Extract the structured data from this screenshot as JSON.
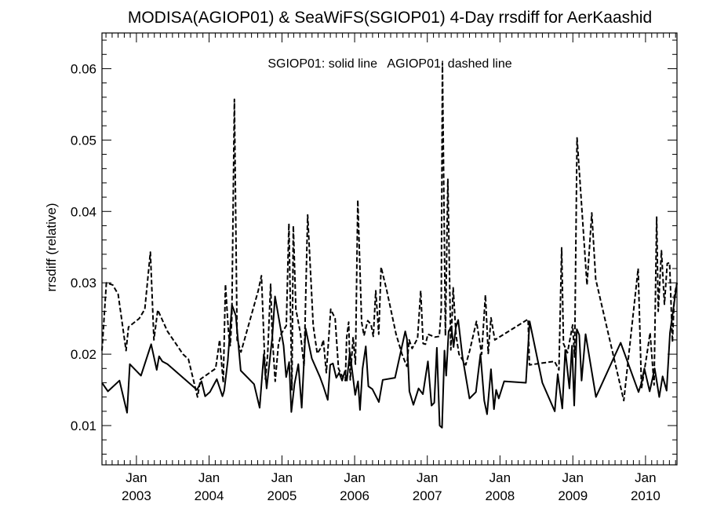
{
  "chart_data": {
    "type": "line",
    "title": "MODISA(AGIOP01) & SeaWiFS(SGIOP01) 4-Day rrsdiff for AerKaashid",
    "ylabel": "rrsdiff (relative)",
    "xlabel": "",
    "annotation": "SGIOP01: solid line   AGIOP01: dashed line",
    "ylim": [
      0.0045,
      0.065
    ],
    "xlim": [
      "2002-07-12",
      "2010-06-08"
    ],
    "y_ticks": [
      {
        "value": 0.01,
        "label": "0.01"
      },
      {
        "value": 0.02,
        "label": "0.02"
      },
      {
        "value": 0.03,
        "label": "0.03"
      },
      {
        "value": 0.04,
        "label": "0.04"
      },
      {
        "value": 0.05,
        "label": "0.05"
      },
      {
        "value": 0.06,
        "label": "0.06"
      }
    ],
    "x_ticks": [
      {
        "date": "2003-01-01",
        "month": "Jan",
        "year": "2003"
      },
      {
        "date": "2004-01-01",
        "month": "Jan",
        "year": "2004"
      },
      {
        "date": "2005-01-01",
        "month": "Jan",
        "year": "2005"
      },
      {
        "date": "2006-01-01",
        "month": "Jan",
        "year": "2006"
      },
      {
        "date": "2007-01-01",
        "month": "Jan",
        "year": "2007"
      },
      {
        "date": "2008-01-01",
        "month": "Jan",
        "year": "2008"
      },
      {
        "date": "2009-01-01",
        "month": "Jan",
        "year": "2009"
      },
      {
        "date": "2010-01-01",
        "month": "Jan",
        "year": "2010"
      }
    ],
    "series": [
      {
        "name": "SGIOP01",
        "style": "solid",
        "color": "#000000",
        "x": [
          "2002-07-12",
          "2002-08-11",
          "2002-10-08",
          "2002-11-15",
          "2002-11-29",
          "2003-01-24",
          "2003-03-16",
          "2003-04-13",
          "2003-04-25",
          "2003-05-11",
          "2003-06-06",
          "2003-09-13",
          "2003-11-01",
          "2003-11-24",
          "2003-12-12",
          "2004-01-05",
          "2004-02-09",
          "2004-03-08",
          "2004-03-17",
          "2004-04-04",
          "2004-04-25",
          "2004-05-14",
          "2004-06-08",
          "2004-08-14",
          "2004-09-11",
          "2004-10-02",
          "2004-10-16",
          "2004-11-13",
          "2004-11-27",
          "2005-01-09",
          "2005-01-22",
          "2005-02-06",
          "2005-02-17",
          "2005-03-05",
          "2005-03-24",
          "2005-04-10",
          "2005-04-30",
          "2005-05-31",
          "2005-07-11",
          "2005-07-28",
          "2005-08-19",
          "2005-08-31",
          "2005-09-14",
          "2005-10-01",
          "2005-10-15",
          "2005-10-30",
          "2005-11-13",
          "2005-11-23",
          "2005-12-08",
          "2006-01-04",
          "2006-01-18",
          "2006-01-28",
          "2006-02-10",
          "2006-02-26",
          "2006-03-11",
          "2006-03-31",
          "2006-05-03",
          "2006-05-22",
          "2006-07-23",
          "2006-09-12",
          "2006-09-21",
          "2006-10-03",
          "2006-10-23",
          "2006-11-18",
          "2006-12-10",
          "2007-01-04",
          "2007-01-22",
          "2007-02-05",
          "2007-02-18",
          "2007-03-04",
          "2007-03-16",
          "2007-03-28",
          "2007-04-06",
          "2007-04-18",
          "2007-05-02",
          "2007-05-13",
          "2007-05-24",
          "2007-06-05",
          "2007-06-27",
          "2007-08-01",
          "2007-09-02",
          "2007-09-25",
          "2007-10-14",
          "2007-10-28",
          "2007-11-17",
          "2007-12-02",
          "2007-12-13",
          "2007-12-26",
          "2008-01-22",
          "2008-05-10",
          "2008-05-29",
          "2008-08-01",
          "2008-10-02",
          "2008-10-17",
          "2008-11-09",
          "2008-11-24",
          "2008-12-15",
          "2008-12-28",
          "2009-01-08",
          "2009-01-21",
          "2009-02-02",
          "2009-02-14",
          "2009-03-06",
          "2009-04-27",
          "2009-08-29",
          "2009-11-27",
          "2009-12-12",
          "2009-12-26",
          "2010-01-22",
          "2010-02-16",
          "2010-03-11",
          "2010-03-28",
          "2010-04-17",
          "2010-05-04",
          "2010-05-20",
          "2010-06-08"
        ],
        "y": [
          0.016,
          0.0148,
          0.0163,
          0.0118,
          0.0186,
          0.017,
          0.0214,
          0.0178,
          0.0197,
          0.019,
          0.0186,
          0.0162,
          0.015,
          0.0162,
          0.0141,
          0.0147,
          0.0165,
          0.0141,
          0.0149,
          0.0191,
          0.0269,
          0.0254,
          0.0177,
          0.0158,
          0.0125,
          0.02,
          0.0152,
          0.0223,
          0.0281,
          0.0212,
          0.0168,
          0.0189,
          0.0119,
          0.0158,
          0.0186,
          0.0125,
          0.0236,
          0.0194,
          0.0168,
          0.0155,
          0.0136,
          0.0185,
          0.0187,
          0.0167,
          0.0174,
          0.0163,
          0.0176,
          0.0163,
          0.0203,
          0.0143,
          0.0162,
          0.0122,
          0.018,
          0.0211,
          0.0155,
          0.0151,
          0.0133,
          0.0164,
          0.0167,
          0.0232,
          0.0221,
          0.0148,
          0.0129,
          0.0152,
          0.0144,
          0.019,
          0.0128,
          0.0132,
          0.0209,
          0.01,
          0.0097,
          0.0205,
          0.017,
          0.0232,
          0.0239,
          0.021,
          0.0237,
          0.0248,
          0.0196,
          0.0138,
          0.0147,
          0.02,
          0.0135,
          0.0116,
          0.0179,
          0.0123,
          0.015,
          0.0138,
          0.0162,
          0.016,
          0.0246,
          0.016,
          0.012,
          0.0172,
          0.0124,
          0.0206,
          0.0152,
          0.0212,
          0.0128,
          0.0235,
          0.0227,
          0.0163,
          0.0228,
          0.014,
          0.0216,
          0.0147,
          0.016,
          0.018,
          0.0148,
          0.018,
          0.014,
          0.0169,
          0.0149,
          0.023,
          0.0262,
          0.03
        ]
      },
      {
        "name": "AGIOP01",
        "style": "dashed",
        "color": "#000000",
        "x": [
          "2002-07-12",
          "2002-08-03",
          "2002-09-04",
          "2002-10-01",
          "2002-11-10",
          "2002-11-22",
          "2003-01-15",
          "2003-02-12",
          "2003-03-12",
          "2003-03-30",
          "2003-04-18",
          "2003-06-06",
          "2003-08-23",
          "2003-09-19",
          "2003-11-04",
          "2003-11-19",
          "2004-02-03",
          "2004-02-23",
          "2004-03-12",
          "2004-03-23",
          "2004-04-06",
          "2004-04-10",
          "2004-04-16",
          "2004-04-24",
          "2004-05-07",
          "2004-05-21",
          "2004-06-09",
          "2004-09-04",
          "2004-09-20",
          "2004-10-10",
          "2004-10-21",
          "2004-11-05",
          "2004-11-13",
          "2004-11-28",
          "2004-12-14",
          "2004-12-27",
          "2005-01-23",
          "2005-02-05",
          "2005-02-20",
          "2005-02-27",
          "2005-03-12",
          "2005-04-04",
          "2005-04-22",
          "2005-05-10",
          "2005-06-07",
          "2005-06-27",
          "2005-07-18",
          "2005-07-28",
          "2005-08-12",
          "2005-09-03",
          "2005-09-25",
          "2005-10-12",
          "2005-10-29",
          "2005-11-15",
          "2005-11-22",
          "2005-12-02",
          "2005-12-10",
          "2005-12-24",
          "2006-01-05",
          "2006-01-17",
          "2006-02-05",
          "2006-02-17",
          "2006-03-08",
          "2006-03-24",
          "2006-04-05",
          "2006-04-17",
          "2006-05-02",
          "2006-05-14",
          "2006-06-11",
          "2006-07-28",
          "2006-08-27",
          "2006-09-20",
          "2006-10-02",
          "2006-10-17",
          "2006-11-13",
          "2006-11-29",
          "2006-12-11",
          "2006-12-23",
          "2007-01-04",
          "2007-02-08",
          "2007-03-02",
          "2007-03-12",
          "2007-03-18",
          "2007-04-02",
          "2007-04-14",
          "2007-04-29",
          "2007-05-11",
          "2007-05-25",
          "2007-06-09",
          "2007-07-13",
          "2007-08-02",
          "2007-09-05",
          "2007-10-01",
          "2007-10-20",
          "2007-11-03",
          "2007-11-17",
          "2007-12-06",
          "2008-05-21",
          "2008-05-28",
          "2008-10-01",
          "2008-10-23",
          "2008-11-06",
          "2008-11-15",
          "2008-12-05",
          "2008-12-31",
          "2009-01-10",
          "2009-01-22",
          "2009-03-13",
          "2009-04-06",
          "2009-04-26",
          "2009-09-14",
          "2009-11-25",
          "2009-12-12",
          "2010-01-08",
          "2010-01-24",
          "2010-02-13",
          "2010-02-26",
          "2010-03-06",
          "2010-03-22",
          "2010-04-06",
          "2010-04-20",
          "2010-05-02",
          "2010-05-16",
          "2010-05-26",
          "2010-06-08"
        ],
        "y": [
          0.0205,
          0.03,
          0.0297,
          0.0284,
          0.0205,
          0.0238,
          0.025,
          0.0263,
          0.0343,
          0.022,
          0.0262,
          0.0232,
          0.02,
          0.0193,
          0.014,
          0.0165,
          0.018,
          0.022,
          0.016,
          0.0298,
          0.0237,
          0.0224,
          0.0212,
          0.0249,
          0.0557,
          0.022,
          0.0203,
          0.0289,
          0.031,
          0.0165,
          0.02,
          0.0298,
          0.0227,
          0.0162,
          0.0213,
          0.0228,
          0.024,
          0.0383,
          0.015,
          0.038,
          0.0263,
          0.0229,
          0.0183,
          0.0395,
          0.024,
          0.0201,
          0.021,
          0.022,
          0.0174,
          0.0263,
          0.025,
          0.018,
          0.017,
          0.0163,
          0.0223,
          0.0245,
          0.0164,
          0.0224,
          0.0186,
          0.0416,
          0.0245,
          0.0226,
          0.0247,
          0.0242,
          0.0225,
          0.0289,
          0.0228,
          0.0322,
          0.029,
          0.0228,
          0.02,
          0.0183,
          0.022,
          0.0208,
          0.0222,
          0.0289,
          0.0215,
          0.0214,
          0.0228,
          0.0224,
          0.0225,
          0.0263,
          0.0608,
          0.0226,
          0.0445,
          0.0206,
          0.0293,
          0.0227,
          0.02,
          0.0185,
          0.0205,
          0.0246,
          0.02,
          0.0283,
          0.0201,
          0.0251,
          0.022,
          0.0249,
          0.0185,
          0.019,
          0.0178,
          0.0349,
          0.0215,
          0.0202,
          0.0241,
          0.0196,
          0.0503,
          0.0297,
          0.0398,
          0.0305,
          0.0135,
          0.032,
          0.0152,
          0.02,
          0.023,
          0.0157,
          0.0392,
          0.026,
          0.0345,
          0.027,
          0.0327,
          0.0328,
          0.0217,
          0.0282,
          0.03
        ]
      }
    ]
  }
}
